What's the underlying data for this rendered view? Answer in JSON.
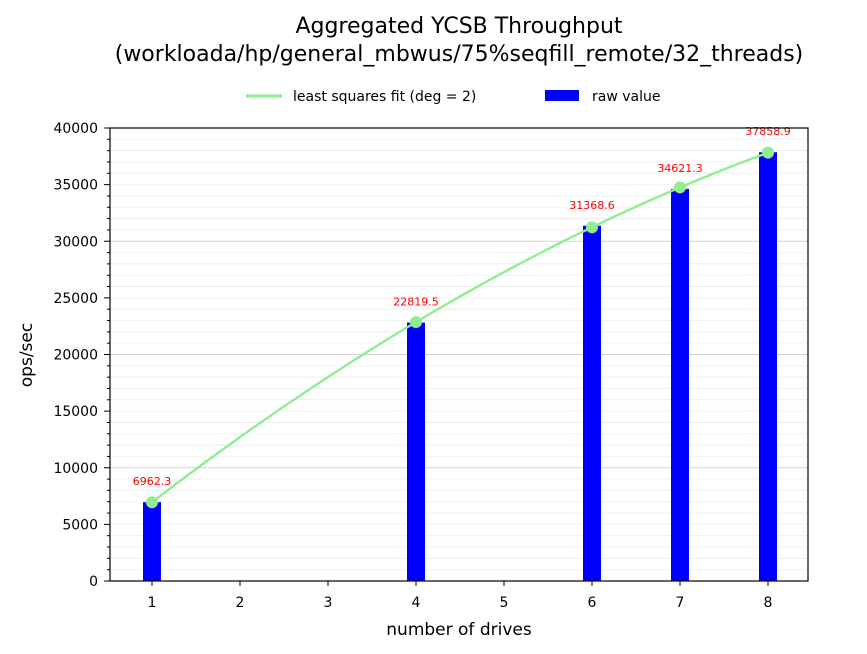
{
  "chart_data": {
    "type": "bar",
    "title_line1": "Aggregated YCSB Throughput",
    "title_line2": "(workloada/hp/general_mbwus/75%seqfill_remote/32_threads)",
    "xlabel": "number of drives",
    "ylabel": "ops/sec",
    "x": [
      1,
      4,
      6,
      7,
      8
    ],
    "values": [
      6962.3,
      22819.5,
      31368.6,
      34621.3,
      37858.9
    ],
    "value_labels": [
      "6962.3",
      "22819.5",
      "31368.6",
      "34621.3",
      "37858.9"
    ],
    "x_ticks": [
      "1",
      "2",
      "3",
      "4",
      "5",
      "6",
      "7",
      "8"
    ],
    "y_ticks": [
      "0",
      "5000",
      "10000",
      "15000",
      "20000",
      "25000",
      "30000",
      "35000",
      "40000"
    ],
    "ylim": [
      0,
      40000
    ],
    "fit": {
      "degree": 2,
      "label": "least squares fit (deg = 2)"
    },
    "legend": {
      "fit_label": "least squares fit (deg = 2)",
      "bar_label": "raw value",
      "position": "top"
    },
    "colors": {
      "bar": "#0000ff",
      "fit": "#90ee90",
      "data_label": "#ff0000"
    }
  }
}
